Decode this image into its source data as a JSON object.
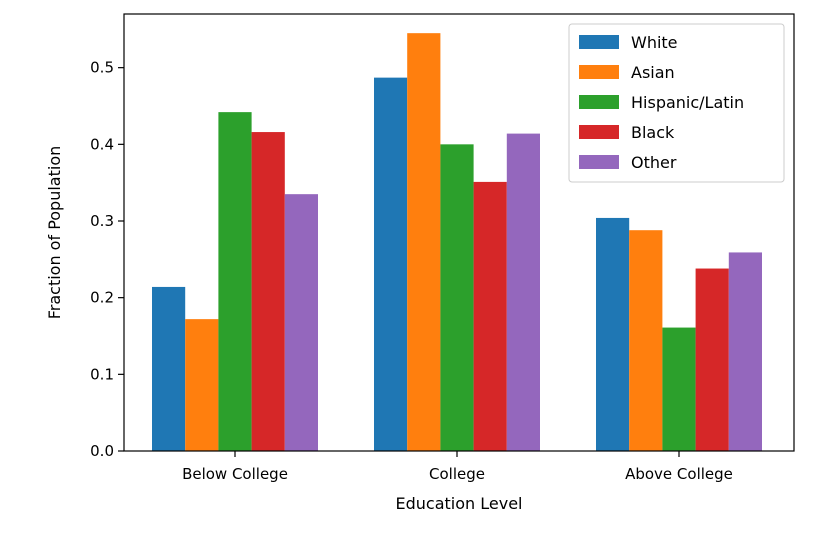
{
  "chart_data": {
    "type": "bar",
    "title": "",
    "xlabel": "Education Level",
    "ylabel": "Fraction of Population",
    "categories": [
      "Below College",
      "College",
      "Above College"
    ],
    "ylim": [
      0,
      0.57
    ],
    "yticks": [
      "0.0",
      "0.1",
      "0.2",
      "0.3",
      "0.4",
      "0.5"
    ],
    "grid": false,
    "legend_position": "top-right",
    "series": [
      {
        "name": "White",
        "color": "#1f77b4",
        "values": [
          0.214,
          0.487,
          0.304
        ]
      },
      {
        "name": "Asian",
        "color": "#ff7f0e",
        "values": [
          0.172,
          0.545,
          0.288
        ]
      },
      {
        "name": "Hispanic/Latin",
        "color": "#2ca02c",
        "values": [
          0.442,
          0.4,
          0.161
        ]
      },
      {
        "name": "Black",
        "color": "#d62728",
        "values": [
          0.416,
          0.351,
          0.238
        ]
      },
      {
        "name": "Other",
        "color": "#9467bd",
        "values": [
          0.335,
          0.414,
          0.259
        ]
      }
    ]
  }
}
